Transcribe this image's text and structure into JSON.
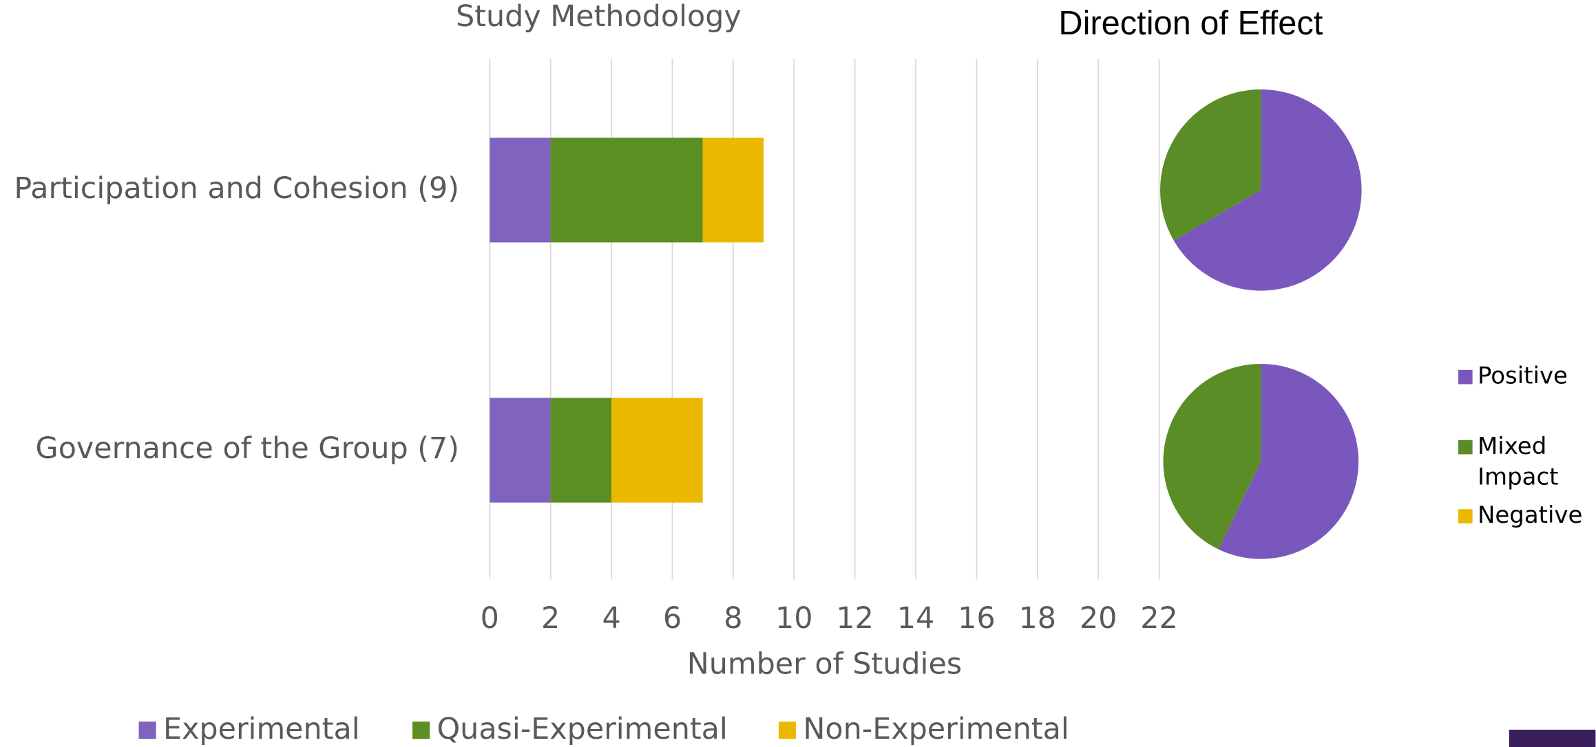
{
  "chart_data": [
    {
      "type": "bar",
      "orientation": "horizontal",
      "stacked": true,
      "title": "Study Methodology",
      "categories": [
        "Participation and Cohesion (9)",
        "Governance of the Group (7)"
      ],
      "series": [
        {
          "name": "Experimental",
          "color": "#7f63bf",
          "values": [
            2,
            2
          ]
        },
        {
          "name": "Quasi-Experimental",
          "color": "#5b8e23",
          "values": [
            5,
            2
          ]
        },
        {
          "name": "Non-Experimental",
          "color": "#ebb800",
          "values": [
            2,
            3
          ]
        }
      ],
      "xlabel": "Number of Studies",
      "xlim": [
        0,
        22
      ],
      "xticks": [
        0,
        2,
        4,
        6,
        8,
        10,
        12,
        14,
        16,
        18,
        20,
        22
      ],
      "grid": true,
      "legend": "bottom"
    },
    {
      "type": "pie",
      "title": "Direction of Effect",
      "categories": [
        "Positive",
        "Mixed Impact",
        "Negative"
      ],
      "colors": [
        "#7a57bd",
        "#5a8d25",
        "#ebb800"
      ],
      "series": [
        {
          "values": [
            6,
            3,
            0
          ]
        },
        {
          "values": [
            4,
            3,
            0
          ]
        }
      ],
      "legend": "right"
    }
  ]
}
